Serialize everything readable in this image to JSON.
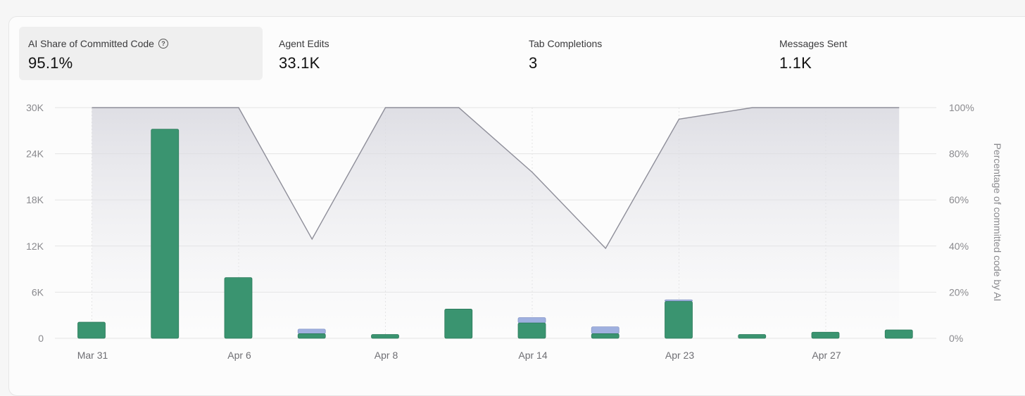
{
  "metrics": [
    {
      "label": "AI Share of Committed Code",
      "value": "95.1%",
      "help_icon": "question-circle-icon"
    },
    {
      "label": "Agent Edits",
      "value": "33.1K"
    },
    {
      "label": "Tab Completions",
      "value": "3"
    },
    {
      "label": "Messages Sent",
      "value": "1.1K"
    }
  ],
  "chart_data": {
    "type": "bar",
    "left_axis": {
      "ticks": [
        "0",
        "6K",
        "12K",
        "18K",
        "24K",
        "30K"
      ],
      "min": 0,
      "max": 30000
    },
    "right_axis": {
      "label": "Percentage of committed code by AI",
      "ticks": [
        "0%",
        "20%",
        "40%",
        "60%",
        "80%",
        "100%"
      ],
      "min": 0,
      "max": 100
    },
    "x_tick_labels": [
      "Mar 31",
      "Apr 6",
      "Apr 8",
      "Apr 14",
      "Apr 23",
      "Apr 27"
    ],
    "series": [
      {
        "values": [
          2100,
          27200,
          7900,
          600,
          500,
          3800,
          2000,
          600,
          4800,
          500,
          800,
          1100
        ],
        "color": "#3a9470"
      },
      {
        "values": [
          0,
          0,
          0,
          600,
          0,
          0,
          700,
          900,
          200,
          0,
          0,
          0
        ],
        "color": "#9fb0df"
      },
      {
        "values": [
          100,
          100,
          100,
          43,
          100,
          100,
          72,
          39,
          95,
          100,
          100,
          100
        ],
        "color": "#8e8e99"
      }
    ],
    "grid": true
  }
}
